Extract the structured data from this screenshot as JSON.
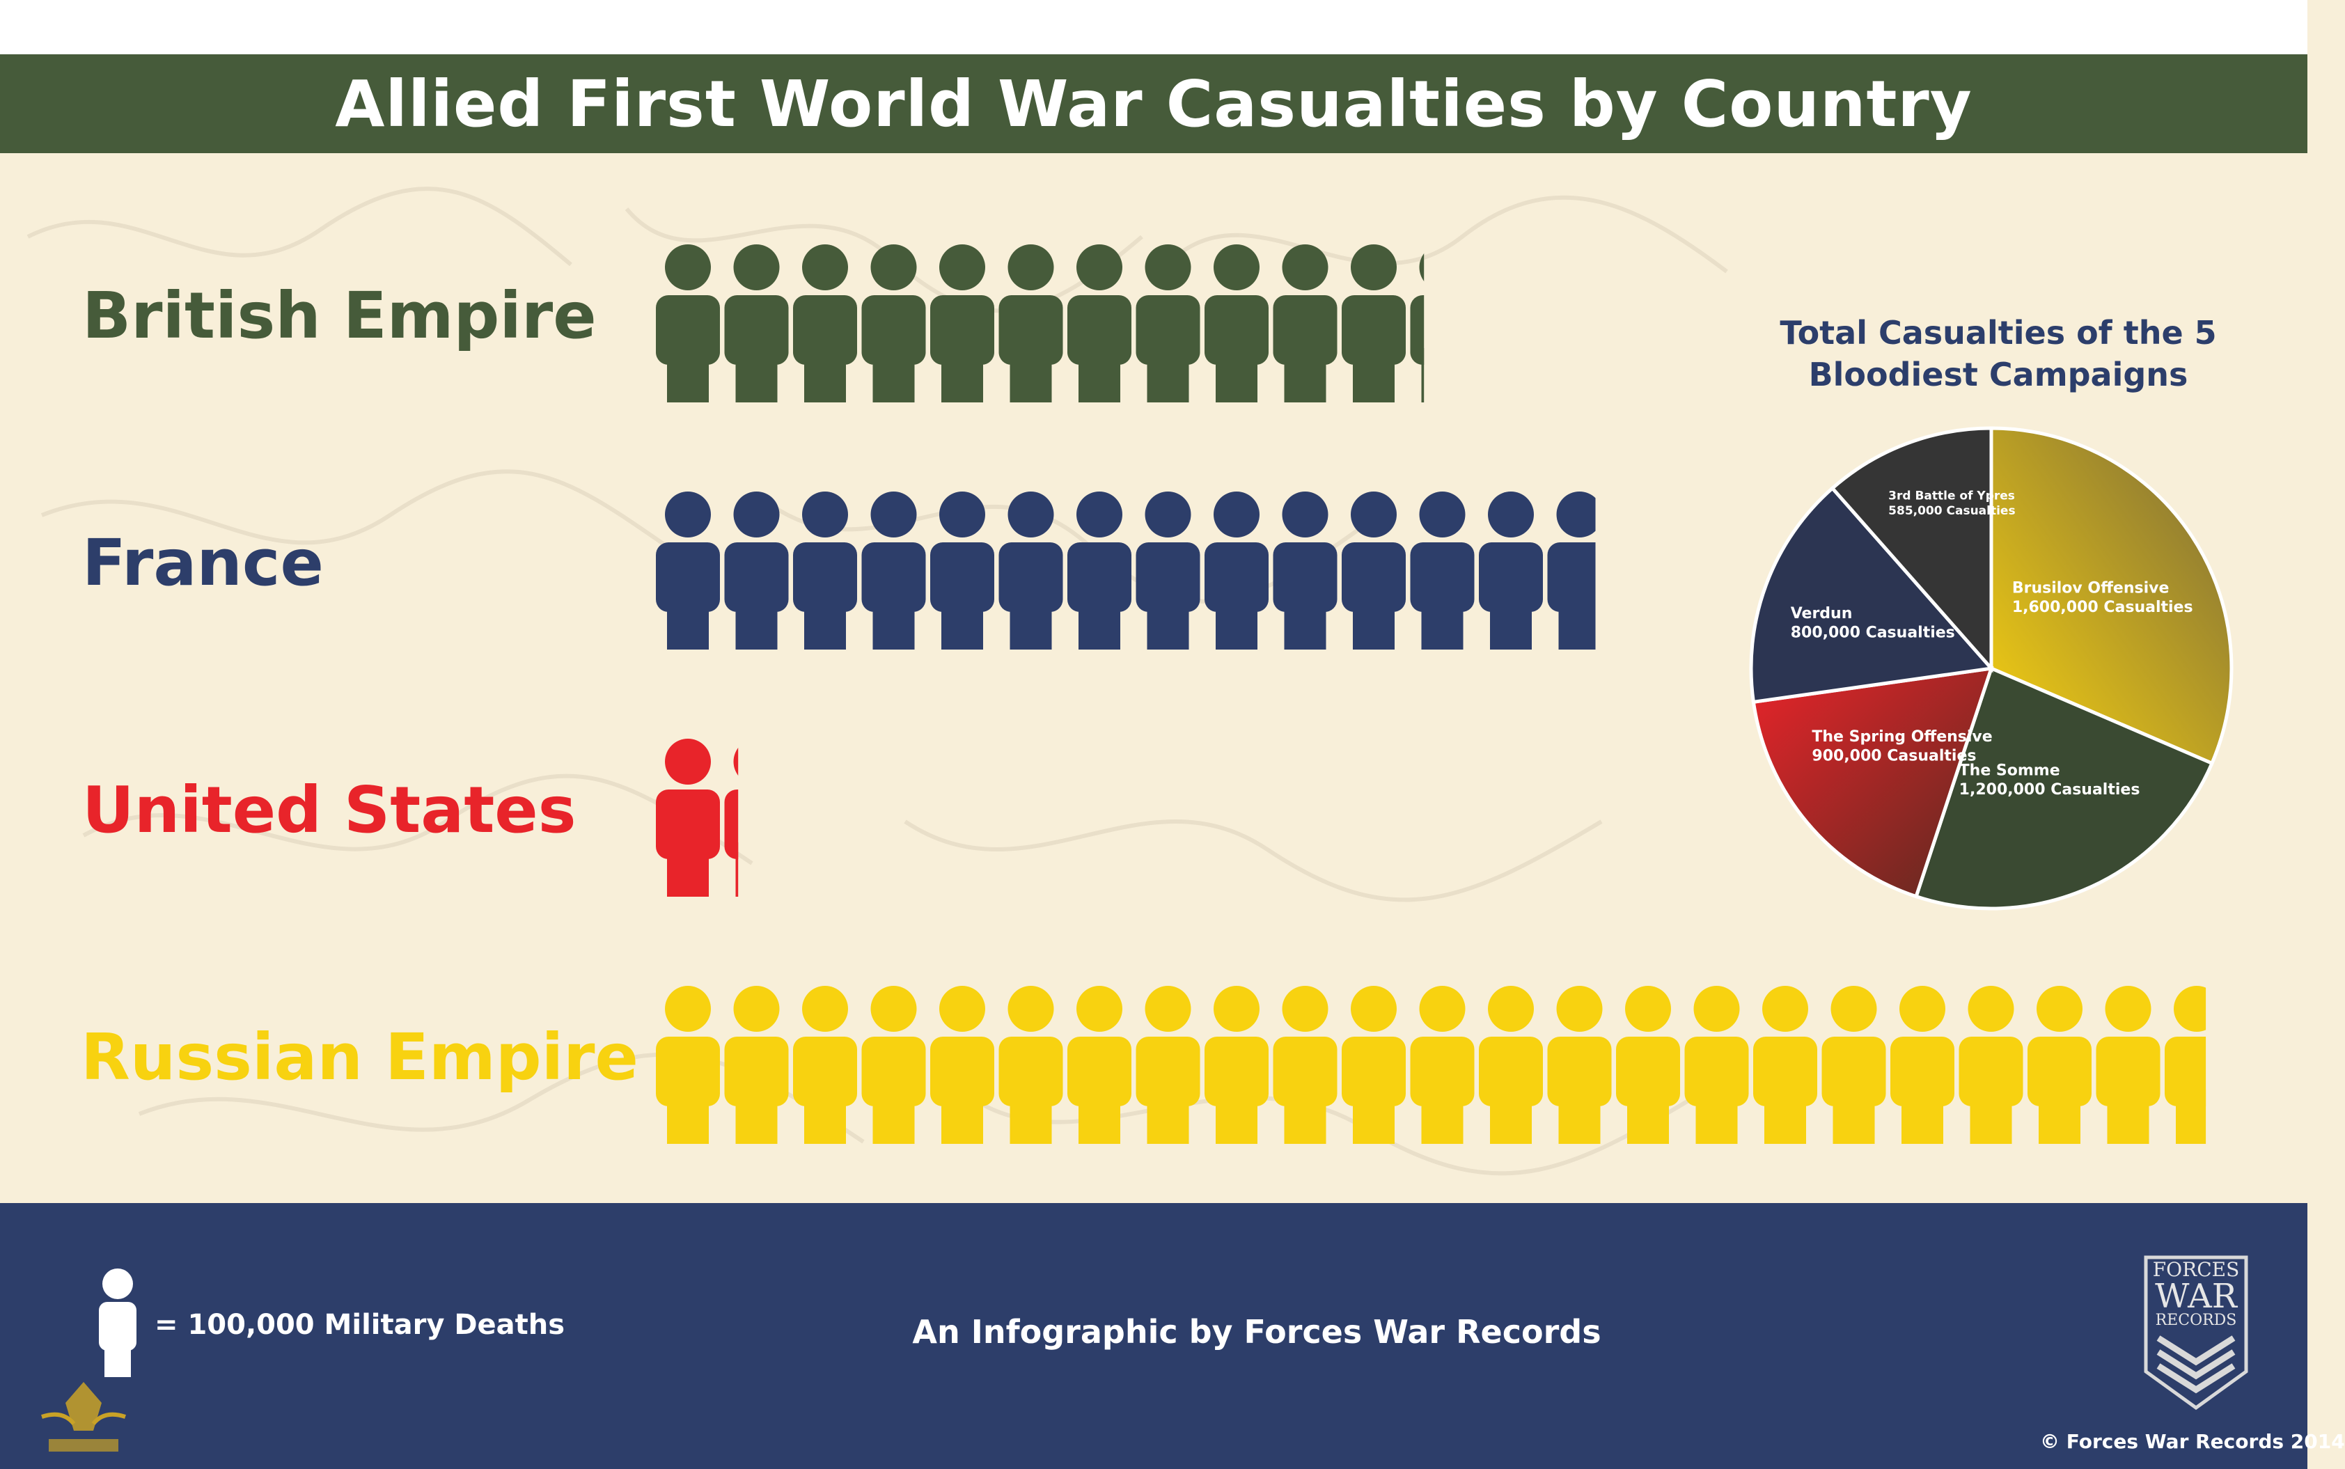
{
  "title": "Allied First World War Casualties by Country",
  "colors": {
    "banner": "#465b3a",
    "background": "#f8efd9",
    "footer": "#2d3e6a",
    "british": "#465b3a",
    "france": "#2d3e6a",
    "us": "#e8242a",
    "russia": "#f8d210",
    "pie_title": "#2c3e6b"
  },
  "icon": "person-icon",
  "chart_data": [
    {
      "type": "bar",
      "orientation": "horizontal",
      "encoding": "pictogram",
      "unit": "= 100,000 Military Deaths",
      "categories": [
        "British Empire",
        "France",
        "United States",
        "Russian Empire"
      ],
      "values": [
        11.2,
        13.7,
        1.2,
        22.6
      ]
    },
    {
      "type": "pie",
      "title": "Total Casualties of the 5 Bloodiest Campaigns",
      "slices": [
        {
          "label": "Brusilov Offensive",
          "value": 1600000,
          "value_label": "1,600,000 Casualties",
          "color": "#c7a733"
        },
        {
          "label": "The Somme",
          "value": 1200000,
          "value_label": "1,200,000 Casualties",
          "color": "#3a4a32"
        },
        {
          "label": "The Spring Offensive",
          "value": 900000,
          "value_label": "900,000 Casualties",
          "color": "#c1272d"
        },
        {
          "label": "Verdun",
          "value": 800000,
          "value_label": "800,000 Casualties",
          "color": "#2c3552"
        },
        {
          "label": "3rd Battle of Ypres",
          "value": 585000,
          "value_label": "585,000 Casualties",
          "color": "#353535"
        }
      ]
    }
  ],
  "footer": {
    "legend": "= 100,000 Military Deaths",
    "credit": "An Infographic by Forces War Records",
    "copyright": "© Forces War Records 2014",
    "logo_lines": [
      "FORCES",
      "WAR",
      "RECORDS"
    ]
  }
}
